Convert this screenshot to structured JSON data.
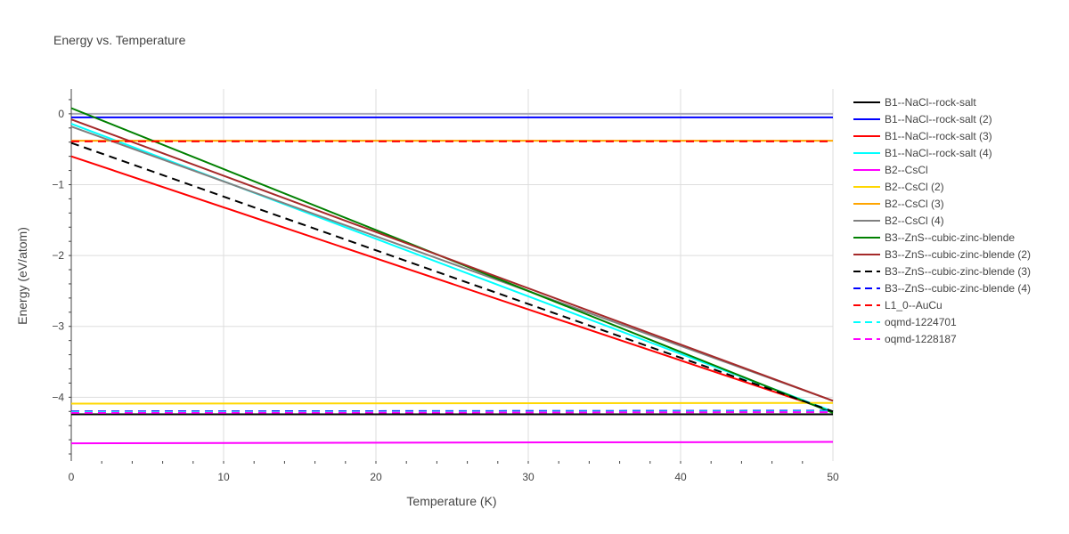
{
  "chart_data": {
    "type": "line",
    "title": "Energy vs. Temperature",
    "xlabel": "Temperature (K)",
    "ylabel": "Energy (eV/atom)",
    "xlim": [
      0,
      50
    ],
    "ylim": [
      -4.9,
      0.35
    ],
    "xticks": [
      0,
      10,
      20,
      30,
      40,
      50
    ],
    "yticks": [
      0,
      -1,
      -2,
      -3,
      -4
    ],
    "xtick_labels": [
      "0",
      "10",
      "20",
      "30",
      "40",
      "50"
    ],
    "ytick_labels": [
      "0",
      "−1",
      "−2",
      "−3",
      "−4"
    ],
    "grid": true,
    "legend_position": "right",
    "series": [
      {
        "name": "B1--NaCl--rock-salt",
        "color": "#000000",
        "dash": "solid",
        "x": [
          0,
          50
        ],
        "y": [
          -4.24,
          -4.24
        ]
      },
      {
        "name": "B1--NaCl--rock-salt (2)",
        "color": "#0000ff",
        "dash": "solid",
        "x": [
          0,
          50
        ],
        "y": [
          -0.05,
          -0.05
        ]
      },
      {
        "name": "B1--NaCl--rock-salt (3)",
        "color": "#ff0000",
        "dash": "solid",
        "x": [
          0,
          50
        ],
        "y": [
          -0.6,
          -4.2
        ]
      },
      {
        "name": "B1--NaCl--rock-salt (4)",
        "color": "#00ffff",
        "dash": "solid",
        "x": [
          0,
          50
        ],
        "y": [
          -0.14,
          -4.2
        ]
      },
      {
        "name": "B2--CsCl",
        "color": "#ff00ff",
        "dash": "solid",
        "x": [
          0,
          50
        ],
        "y": [
          -4.65,
          -4.63
        ]
      },
      {
        "name": "B2--CsCl (2)",
        "color": "#ffd700",
        "dash": "solid",
        "x": [
          0,
          50
        ],
        "y": [
          -4.09,
          -4.08
        ]
      },
      {
        "name": "B2--CsCl (3)",
        "color": "#ffa500",
        "dash": "solid",
        "x": [
          0,
          50
        ],
        "y": [
          -0.38,
          -0.38
        ]
      },
      {
        "name": "B2--CsCl (4)",
        "color": "#808080",
        "dash": "solid",
        "x": [
          0,
          50
        ],
        "y": [
          -0.18,
          -4.05
        ]
      },
      {
        "name": "B3--ZnS--cubic-zinc-blende",
        "color": "#008000",
        "dash": "solid",
        "x": [
          0,
          50
        ],
        "y": [
          0.08,
          -4.22
        ]
      },
      {
        "name": "B3--ZnS--cubic-zinc-blende (2)",
        "color": "#a52a2a",
        "dash": "solid",
        "x": [
          0,
          50
        ],
        "y": [
          -0.08,
          -4.05
        ]
      },
      {
        "name": "B3--ZnS--cubic-zinc-blende (3)",
        "color": "#000000",
        "dash": "dash",
        "x": [
          0,
          50
        ],
        "y": [
          -0.41,
          -4.2
        ]
      },
      {
        "name": "B3--ZnS--cubic-zinc-blende (4)",
        "color": "#0000ff",
        "dash": "dash",
        "x": [
          0,
          50
        ],
        "y": [
          -4.2,
          -4.19
        ]
      },
      {
        "name": "L1_0--AuCu",
        "color": "#ff0000",
        "dash": "dash",
        "x": [
          0,
          50
        ],
        "y": [
          -0.39,
          -0.39
        ]
      },
      {
        "name": "oqmd-1224701",
        "color": "#00ffff",
        "dash": "dash",
        "x": [
          0,
          50
        ],
        "y": [
          -4.21,
          -4.2
        ]
      },
      {
        "name": "oqmd-1228187",
        "color": "#ff00ff",
        "dash": "dash",
        "x": [
          0,
          50
        ],
        "y": [
          -4.22,
          -4.21
        ]
      }
    ]
  }
}
